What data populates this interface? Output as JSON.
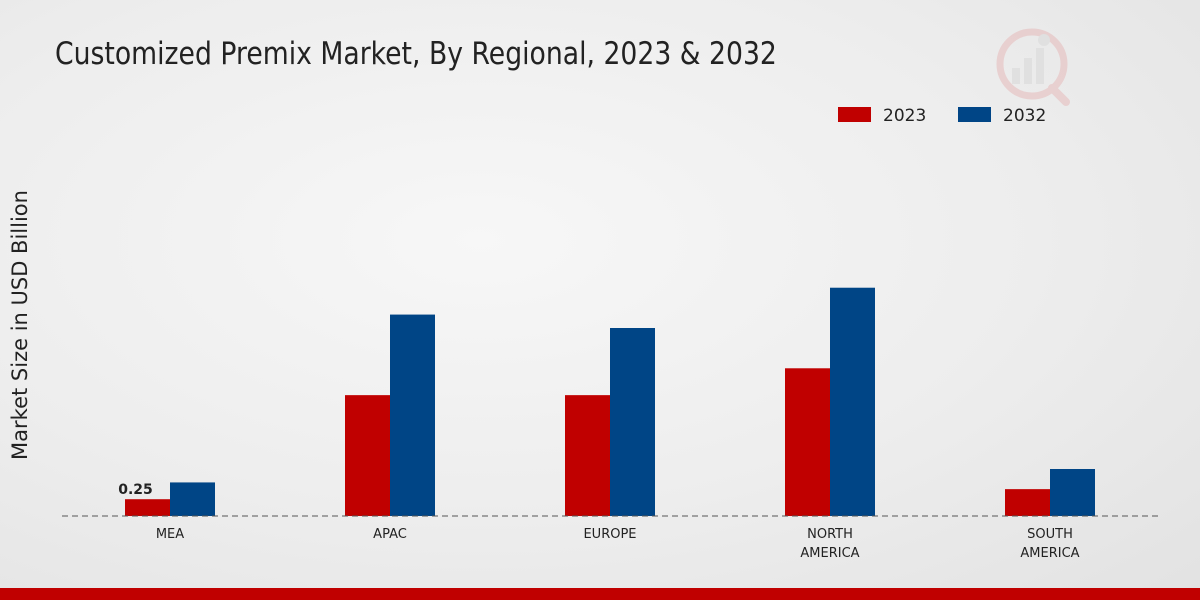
{
  "chart_data": {
    "type": "bar",
    "title": "Customized Premix Market, By Regional, 2023 & 2032",
    "xlabel": "",
    "ylabel": "Market Size in USD Billion",
    "categories": [
      "MEA",
      "APAC",
      "EUROPE",
      "NORTH AMERICA",
      "SOUTH AMERICA"
    ],
    "category_lines": [
      [
        "MEA"
      ],
      [
        "APAC"
      ],
      [
        "EUROPE"
      ],
      [
        "NORTH",
        "AMERICA"
      ],
      [
        "SOUTH",
        "AMERICA"
      ]
    ],
    "series": [
      {
        "name": "2023",
        "color": "#c00000",
        "values": [
          0.25,
          1.8,
          1.8,
          2.2,
          0.4
        ]
      },
      {
        "name": "2032",
        "color": "#004586",
        "values": [
          0.5,
          3.0,
          2.8,
          3.4,
          0.7
        ]
      }
    ],
    "data_labels": [
      {
        "series": 0,
        "index": 0,
        "text": "0.25"
      }
    ],
    "ylim": [
      0,
      5.6
    ],
    "grid": false,
    "legend": "top-right"
  },
  "footer_color": "#c00000"
}
